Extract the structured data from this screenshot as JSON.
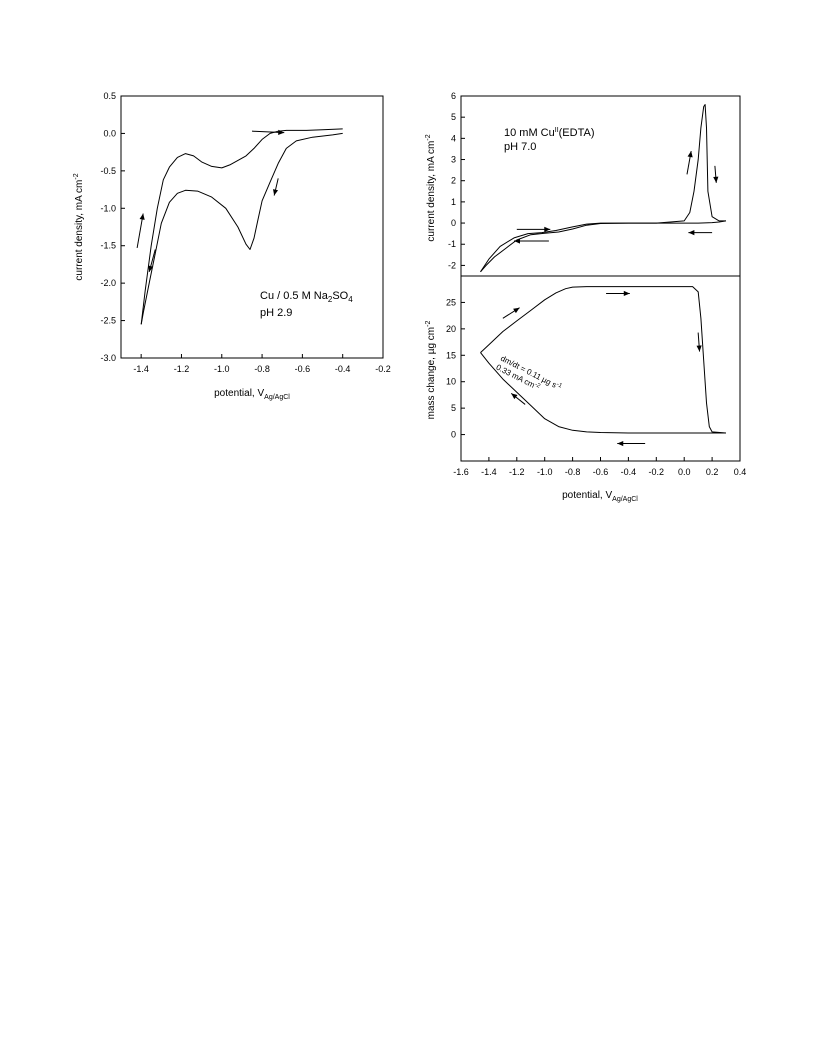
{
  "chart_data": [
    {
      "type": "line",
      "id": "cv_na2so4",
      "xlabel": "potential, V",
      "xlabel_sub": "Ag/AgCl",
      "ylabel": "current density, mA cm",
      "ylabel_sup": "-2",
      "xlim": [
        -1.5,
        -0.2
      ],
      "ylim": [
        -3.0,
        0.5
      ],
      "xticks": [
        -1.4,
        -1.2,
        -1.0,
        -0.8,
        -0.6,
        -0.4,
        -0.2
      ],
      "xtick_labels": [
        "-1.4",
        "-1.2",
        "-1.0",
        "-0.8",
        "-0.6",
        "-0.4",
        "-0.2"
      ],
      "yticks": [
        0.5,
        0.0,
        -0.5,
        -1.0,
        -1.5,
        -2.0,
        -2.5,
        -3.0
      ],
      "ytick_labels": [
        "0.5",
        "0.0",
        "-0.5",
        "-1.0",
        "-1.5",
        "-2.0",
        "-2.5",
        "-3.0"
      ],
      "grid": false,
      "annotation_line1_main": "Cu / 0.5 M Na",
      "annotation_line1_sub1": "2",
      "annotation_line1_mid": "SO",
      "annotation_line1_sub2": "4",
      "annotation_line2": "pH 2.9",
      "series": [
        {
          "x": [
            -0.4,
            -0.45,
            -0.55,
            -0.63,
            -0.68,
            -0.72,
            -0.76,
            -0.8,
            -0.82,
            -0.84,
            -0.86,
            -0.88,
            -0.92,
            -0.98,
            -1.05,
            -1.12,
            -1.18,
            -1.22,
            -1.26,
            -1.3,
            -1.33,
            -1.36,
            -1.39,
            -1.4
          ],
          "y": [
            0.0,
            -0.02,
            -0.05,
            -0.1,
            -0.2,
            -0.4,
            -0.65,
            -0.9,
            -1.15,
            -1.4,
            -1.55,
            -1.48,
            -1.25,
            -1.0,
            -0.85,
            -0.77,
            -0.76,
            -0.8,
            -0.92,
            -1.2,
            -1.6,
            -2.0,
            -2.4,
            -2.55
          ]
        },
        {
          "x": [
            -1.4,
            -1.38,
            -1.35,
            -1.32,
            -1.29,
            -1.26,
            -1.22,
            -1.18,
            -1.14,
            -1.1,
            -1.05,
            -1.0,
            -0.96,
            -0.92,
            -0.88,
            -0.84,
            -0.8,
            -0.76,
            -0.72,
            -0.68,
            -0.64,
            -0.58,
            -0.5,
            -0.4
          ],
          "y": [
            -2.55,
            -2.1,
            -1.5,
            -1.0,
            -0.62,
            -0.45,
            -0.32,
            -0.27,
            -0.3,
            -0.38,
            -0.44,
            -0.46,
            -0.42,
            -0.36,
            -0.3,
            -0.2,
            -0.08,
            0.0,
            0.03,
            0.04,
            0.04,
            0.04,
            0.05,
            0.06
          ]
        }
      ],
      "arrows": [
        {
          "x1": -0.85,
          "y1": 0.03,
          "x2": -0.69,
          "y2": 0.01
        },
        {
          "x1": -0.72,
          "y1": -0.6,
          "x2": -0.74,
          "y2": -0.83
        },
        {
          "x1": -1.42,
          "y1": -1.53,
          "x2": -1.39,
          "y2": -1.07
        },
        {
          "x1": -1.33,
          "y1": -1.55,
          "x2": -1.36,
          "y2": -1.85
        }
      ]
    },
    {
      "type": "line",
      "id": "cv_edta_current",
      "ylabel": "current density, mA cm",
      "ylabel_sup": "-2",
      "xlim": [
        -1.6,
        0.4
      ],
      "ylim": [
        -2.5,
        6
      ],
      "yticks": [
        6,
        5,
        4,
        3,
        2,
        1,
        0,
        -1,
        -2
      ],
      "ytick_labels": [
        "6",
        "5",
        "4",
        "3",
        "2",
        "1",
        "0",
        "-1",
        "-2"
      ],
      "grid": false,
      "annotation_line1_main": "10 mM Cu",
      "annotation_line1_sup": "II",
      "annotation_line1_tail": "(EDTA)",
      "annotation_line2": "pH 7.0",
      "series": [
        {
          "x": [
            -1.46,
            -1.4,
            -1.32,
            -1.22,
            -1.12,
            -1.02,
            -0.92,
            -0.8,
            -0.7,
            -0.6,
            -0.4,
            -0.2,
            0.0,
            0.04,
            0.07,
            0.1,
            0.12,
            0.14,
            0.15,
            0.16,
            0.17,
            0.2,
            0.25,
            0.3
          ],
          "y": [
            -2.3,
            -1.7,
            -1.1,
            -0.7,
            -0.5,
            -0.45,
            -0.35,
            -0.18,
            -0.05,
            0.0,
            0.0,
            0.0,
            0.1,
            0.5,
            1.5,
            3.0,
            4.5,
            5.5,
            5.6,
            4.5,
            1.5,
            0.3,
            0.1,
            0.1
          ]
        },
        {
          "x": [
            0.3,
            0.25,
            0.2,
            0.1,
            0.0,
            -0.2,
            -0.4,
            -0.6,
            -0.7,
            -0.8,
            -0.9,
            -1.0,
            -1.1,
            -1.2,
            -1.28,
            -1.36,
            -1.42,
            -1.46
          ],
          "y": [
            0.1,
            0.05,
            0.02,
            0.0,
            0.0,
            0.0,
            0.0,
            -0.02,
            -0.1,
            -0.28,
            -0.42,
            -0.48,
            -0.55,
            -0.8,
            -1.2,
            -1.6,
            -2.0,
            -2.3
          ]
        }
      ],
      "arrows": [
        {
          "x1": -1.2,
          "y1": -0.3,
          "x2": -0.96,
          "y2": -0.3
        },
        {
          "x1": -0.97,
          "y1": -0.85,
          "x2": -1.22,
          "y2": -0.85
        },
        {
          "x1": 0.02,
          "y1": 2.3,
          "x2": 0.05,
          "y2": 3.4
        },
        {
          "x1": 0.22,
          "y1": 2.7,
          "x2": 0.23,
          "y2": 1.9
        },
        {
          "x1": 0.2,
          "y1": -0.45,
          "x2": 0.03,
          "y2": -0.45
        }
      ]
    },
    {
      "type": "line",
      "id": "eqcm_mass",
      "xlabel": "potential, V",
      "xlabel_sub": "Ag/AgCl",
      "ylabel": "mass change, µg cm",
      "ylabel_sup": "-2",
      "xlim": [
        -1.6,
        0.4
      ],
      "ylim": [
        -5,
        30
      ],
      "xticks": [
        -1.6,
        -1.4,
        -1.2,
        -1.0,
        -0.8,
        -0.6,
        -0.4,
        -0.2,
        0.0,
        0.2,
        0.4
      ],
      "xtick_labels": [
        "-1.6",
        "-1.4",
        "-1.2",
        "-1.0",
        "-0.8",
        "-0.6",
        "-0.4",
        "-0.2",
        "0.0",
        "0.2",
        "0.4"
      ],
      "yticks": [
        25,
        20,
        15,
        10,
        5,
        0
      ],
      "ytick_labels": [
        "25",
        "20",
        "15",
        "10",
        "5",
        "0"
      ],
      "grid": false,
      "rotated_annotation_line1": "dm/dt = 0.11 µg s",
      "rotated_annotation_line1_sup": "-1",
      "rotated_annotation_line2": "0.33 mA cm",
      "rotated_annotation_line2_sup": "-2",
      "series": [
        {
          "x": [
            -1.46,
            -1.4,
            -1.3,
            -1.2,
            -1.1,
            -1.0,
            -0.92,
            -0.85,
            -0.8,
            -0.7,
            -0.5,
            -0.2,
            0.0,
            0.06,
            0.1,
            0.12,
            0.14,
            0.16,
            0.18,
            0.2,
            0.3
          ],
          "y": [
            15.5,
            17.0,
            19.5,
            21.5,
            23.5,
            25.5,
            26.8,
            27.6,
            27.9,
            28.0,
            28.0,
            28.0,
            28.0,
            28.0,
            27.0,
            22.0,
            14.0,
            6.0,
            1.5,
            0.5,
            0.3
          ]
        },
        {
          "x": [
            0.3,
            0.2,
            0.0,
            -0.2,
            -0.4,
            -0.6,
            -0.7,
            -0.8,
            -0.9,
            -1.0,
            -1.1,
            -1.2,
            -1.3,
            -1.4,
            -1.46
          ],
          "y": [
            0.3,
            0.3,
            0.3,
            0.3,
            0.3,
            0.4,
            0.5,
            0.8,
            1.5,
            3.0,
            5.5,
            8.0,
            10.5,
            13.5,
            15.5
          ]
        }
      ],
      "arrows": [
        {
          "x1": -1.3,
          "y1": 22.0,
          "x2": -1.18,
          "y2": 24.0
        },
        {
          "x1": -0.56,
          "y1": 26.7,
          "x2": -0.39,
          "y2": 26.7
        },
        {
          "x1": 0.1,
          "y1": 19.3,
          "x2": 0.11,
          "y2": 15.7
        },
        {
          "x1": -1.14,
          "y1": 5.7,
          "x2": -1.24,
          "y2": 7.8
        },
        {
          "x1": -0.28,
          "y1": -1.7,
          "x2": -0.48,
          "y2": -1.7
        }
      ]
    }
  ]
}
